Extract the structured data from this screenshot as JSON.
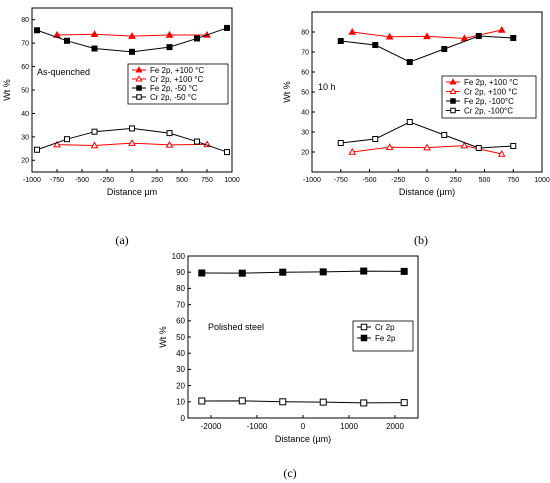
{
  "chart_data": [
    {
      "type": "line",
      "panel_label": "(a)",
      "annotation": "As-quenched",
      "xlabel": "Distance µm",
      "ylabel": "Wt %",
      "xlim": [
        -1000,
        1000
      ],
      "ylim": [
        15,
        85
      ],
      "xticks": [
        -1000,
        -750,
        -500,
        -250,
        0,
        250,
        500,
        750,
        1000
      ],
      "yticks": [
        20,
        30,
        40,
        50,
        60,
        70,
        80
      ],
      "legend_position": "center-right",
      "series": [
        {
          "name": "Fe 2p, +100 °C",
          "color": "#ff0000",
          "marker": "triangle",
          "filled": true,
          "x": [
            -750,
            -375,
            0,
            375,
            750
          ],
          "y": [
            73.5,
            73.8,
            73.0,
            73.5,
            73.5
          ]
        },
        {
          "name": "Cr 2p, +100 °C",
          "color": "#ff0000",
          "marker": "triangle",
          "filled": false,
          "x": [
            -750,
            -375,
            0,
            375,
            750
          ],
          "y": [
            26.7,
            26.3,
            27.3,
            26.6,
            26.8
          ]
        },
        {
          "name": "Fe 2p, -50 °C",
          "color": "#000000",
          "marker": "square",
          "filled": true,
          "x": [
            -950,
            -650,
            -375,
            0,
            375,
            650,
            950
          ],
          "y": [
            75.5,
            71.0,
            67.7,
            66.3,
            68.3,
            72.0,
            76.5
          ]
        },
        {
          "name": "Cr 2p, -50 °C",
          "color": "#000000",
          "marker": "square",
          "filled": false,
          "x": [
            -950,
            -650,
            -375,
            0,
            375,
            650,
            950
          ],
          "y": [
            24.5,
            29.0,
            32.2,
            33.6,
            31.6,
            28.0,
            23.5
          ]
        }
      ]
    },
    {
      "type": "line",
      "panel_label": "(b)",
      "annotation": "10 h",
      "xlabel": "Distance (µm)",
      "ylabel": "Wt %",
      "xlim": [
        -1000,
        1000
      ],
      "ylim": [
        10,
        90
      ],
      "xticks": [
        -1000,
        -750,
        -500,
        -250,
        0,
        250,
        500,
        750,
        1000
      ],
      "yticks": [
        20,
        30,
        40,
        50,
        60,
        70,
        80
      ],
      "legend_position": "right",
      "series": [
        {
          "name": "Fe 2p, +100 °C",
          "color": "#ff0000",
          "marker": "triangle",
          "filled": true,
          "x": [
            -650,
            -325,
            0,
            325,
            650
          ],
          "y": [
            80.0,
            77.6,
            77.8,
            76.8,
            81.0
          ]
        },
        {
          "name": "Cr 2p, +100 °C",
          "color": "#ff0000",
          "marker": "triangle",
          "filled": false,
          "x": [
            -650,
            -325,
            0,
            325,
            650
          ],
          "y": [
            20.0,
            22.4,
            22.2,
            23.2,
            19.0
          ]
        },
        {
          "name": "Fe 2p, -100°C",
          "color": "#000000",
          "marker": "square",
          "filled": true,
          "x": [
            -750,
            -450,
            -150,
            150,
            450,
            750
          ],
          "y": [
            75.5,
            73.5,
            65.0,
            71.5,
            78.0,
            77.0
          ]
        },
        {
          "name": "Cr 2p, -100°C",
          "color": "#000000",
          "marker": "square",
          "filled": false,
          "x": [
            -750,
            -450,
            -150,
            150,
            450,
            750
          ],
          "y": [
            24.5,
            26.5,
            35.0,
            28.5,
            22.0,
            23.0
          ]
        }
      ]
    },
    {
      "type": "line",
      "panel_label": "(c)",
      "annotation": "Polished steel",
      "xlabel": "Distance (µm)",
      "ylabel": "Wt %",
      "xlim": [
        -2500,
        2500
      ],
      "ylim": [
        0,
        100
      ],
      "xticks": [
        -2000,
        -1000,
        0,
        1000,
        2000
      ],
      "yticks": [
        0,
        10,
        20,
        30,
        40,
        50,
        60,
        70,
        80,
        90,
        100
      ],
      "legend_position": "center-right",
      "series": [
        {
          "name": "Cr 2p",
          "color": "#000000",
          "marker": "square",
          "filled": false,
          "x": [
            -2200,
            -1320,
            -440,
            440,
            1320,
            2200
          ],
          "y": [
            10.5,
            10.6,
            10.0,
            9.8,
            9.3,
            9.5
          ]
        },
        {
          "name": "Fe 2p",
          "color": "#000000",
          "marker": "square",
          "filled": true,
          "x": [
            -2200,
            -1320,
            -440,
            440,
            1320,
            2200
          ],
          "y": [
            89.5,
            89.4,
            90.0,
            90.2,
            90.7,
            90.5
          ]
        }
      ]
    }
  ]
}
